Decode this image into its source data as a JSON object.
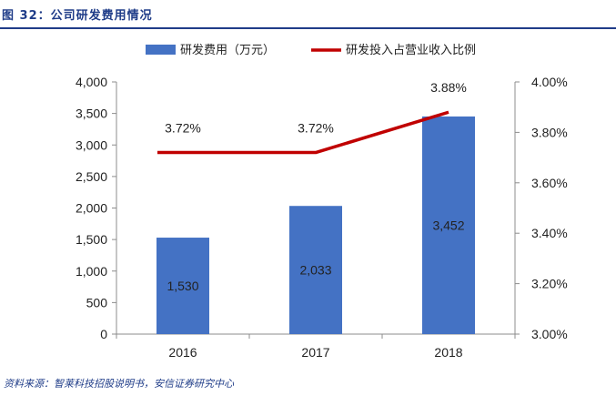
{
  "figure_title": "图 32：公司研发费用情况",
  "source_note": "资料来源：智莱科技招股说明书，安信证券研究中心",
  "colors": {
    "bar": "#4472c4",
    "line": "#c00000",
    "title": "#1f3c88"
  },
  "chart_data": {
    "type": "bar",
    "categories": [
      "2016",
      "2017",
      "2018"
    ],
    "series": [
      {
        "name": "研发费用（万元）",
        "type": "bar",
        "axis": "left",
        "values": [
          1530,
          2033,
          3452
        ],
        "labels": [
          "1,530",
          "2,033",
          "3,452"
        ]
      },
      {
        "name": "研发投入占营业收入比例",
        "type": "line",
        "axis": "right",
        "values": [
          3.72,
          3.72,
          3.88
        ],
        "labels": [
          "3.72%",
          "3.72%",
          "3.88%"
        ]
      }
    ],
    "y_left": {
      "ylim": [
        0,
        4000
      ],
      "ticks": [
        0,
        500,
        1000,
        1500,
        2000,
        2500,
        3000,
        3500,
        4000
      ],
      "tick_labels": [
        "0",
        "500",
        "1,000",
        "1,500",
        "2,000",
        "2,500",
        "3,000",
        "3,500",
        "4,000"
      ]
    },
    "y_right": {
      "ylim": [
        3.0,
        4.0
      ],
      "ticks": [
        3.0,
        3.2,
        3.4,
        3.6,
        3.8,
        4.0
      ],
      "tick_labels": [
        "3.00%",
        "3.20%",
        "3.40%",
        "3.60%",
        "3.80%",
        "4.00%"
      ]
    },
    "grid": false,
    "legend_position": "top"
  }
}
